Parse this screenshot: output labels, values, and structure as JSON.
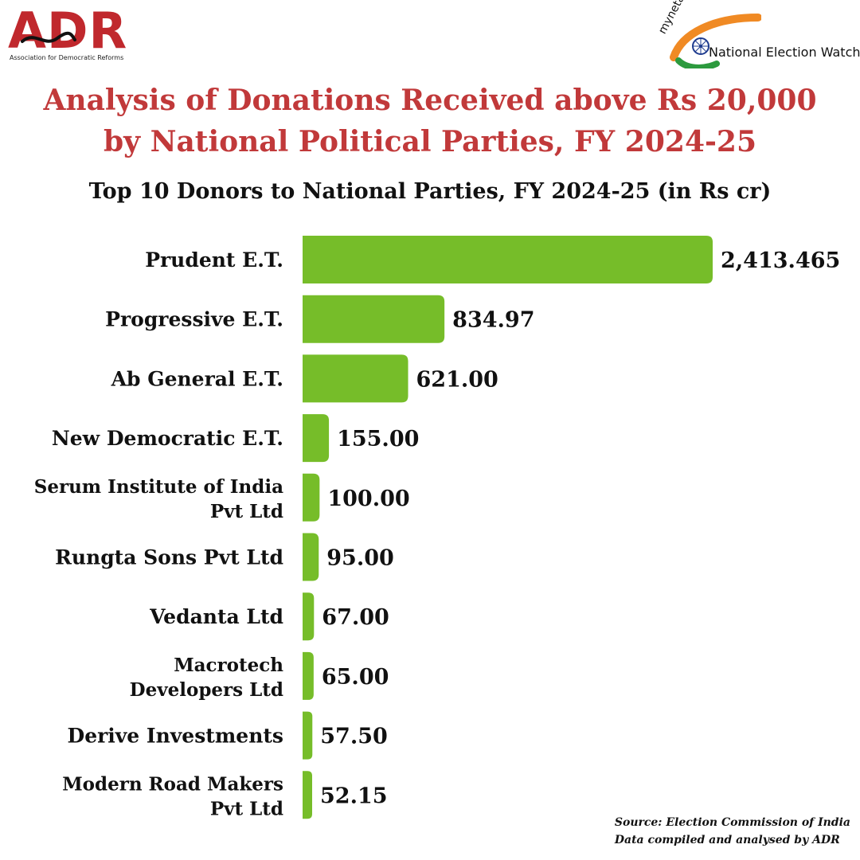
{
  "header": {
    "adr_logo_text": "ADR",
    "adr_logo_subtitle": "Association for Democratic Reforms",
    "new_logo_site": "myneta.info",
    "new_logo_title": "National Election Watch"
  },
  "title_lines": [
    "Analysis of Donations Received above Rs 20,000",
    "by National Political Parties, FY 2024-25"
  ],
  "colors": {
    "title": "#c1393a",
    "bar": "#76bd29",
    "text": "#111111"
  },
  "chart_data": {
    "type": "bar",
    "orientation": "horizontal",
    "title": "Top 10 Donors to National Parties, FY 2024-25 (in Rs cr)",
    "categories": [
      [
        "Prudent E.T."
      ],
      [
        "Progressive E.T."
      ],
      [
        "Ab General E.T."
      ],
      [
        "New Democratic E.T."
      ],
      [
        "Serum Institute of India",
        "Pvt Ltd"
      ],
      [
        "Rungta Sons Pvt Ltd"
      ],
      [
        "Vedanta Ltd"
      ],
      [
        "Macrotech",
        "Developers Ltd"
      ],
      [
        "Derive Investments"
      ],
      [
        "Modern Road Makers",
        "Pvt Ltd"
      ]
    ],
    "values": [
      2413.465,
      834.97,
      621.0,
      155.0,
      100.0,
      95.0,
      67.0,
      65.0,
      57.5,
      52.15
    ],
    "value_labels": [
      "2,413.465",
      "834.97",
      "621.00",
      "155.00",
      "100.00",
      "95.00",
      "67.00",
      "65.00",
      "57.50",
      "52.15"
    ],
    "xlim": [
      0,
      2413.465
    ],
    "grid": false,
    "legend": "none"
  },
  "footer": {
    "source_line": "Source: Election Commission of India",
    "compiled_line": "Data compiled and analysed by ADR"
  }
}
